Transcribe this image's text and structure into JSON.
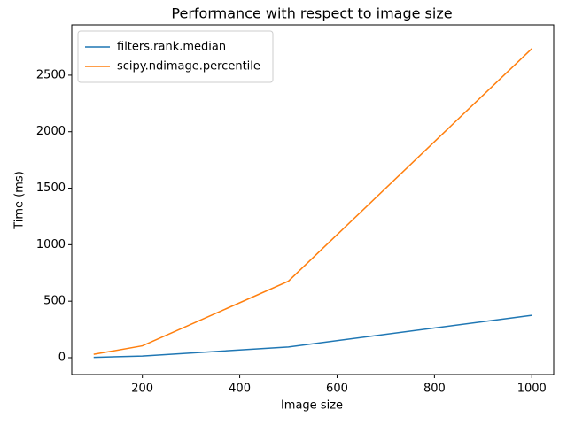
{
  "chart_data": {
    "type": "line",
    "title": "Performance with respect to image size",
    "x_label": "Image size",
    "y_label": "Time (ms)",
    "x": [
      100,
      200,
      500,
      1000
    ],
    "series": [
      {
        "name": "filters.rank.median",
        "color": "#1f77b4",
        "values": [
          3,
          15,
          95,
          375
        ]
      },
      {
        "name": "scipy.ndimage.percentile",
        "color": "#ff7f0e",
        "values": [
          30,
          105,
          677,
          2735
        ]
      }
    ],
    "xlim": [
      55,
      1045
    ],
    "xticks": [
      200,
      400,
      600,
      800,
      1000
    ],
    "ylim": [
      -149,
      2946
    ],
    "yticks": [
      0,
      500,
      1000,
      1500,
      2000,
      2500
    ],
    "legend": "upper left",
    "grid": false
  }
}
